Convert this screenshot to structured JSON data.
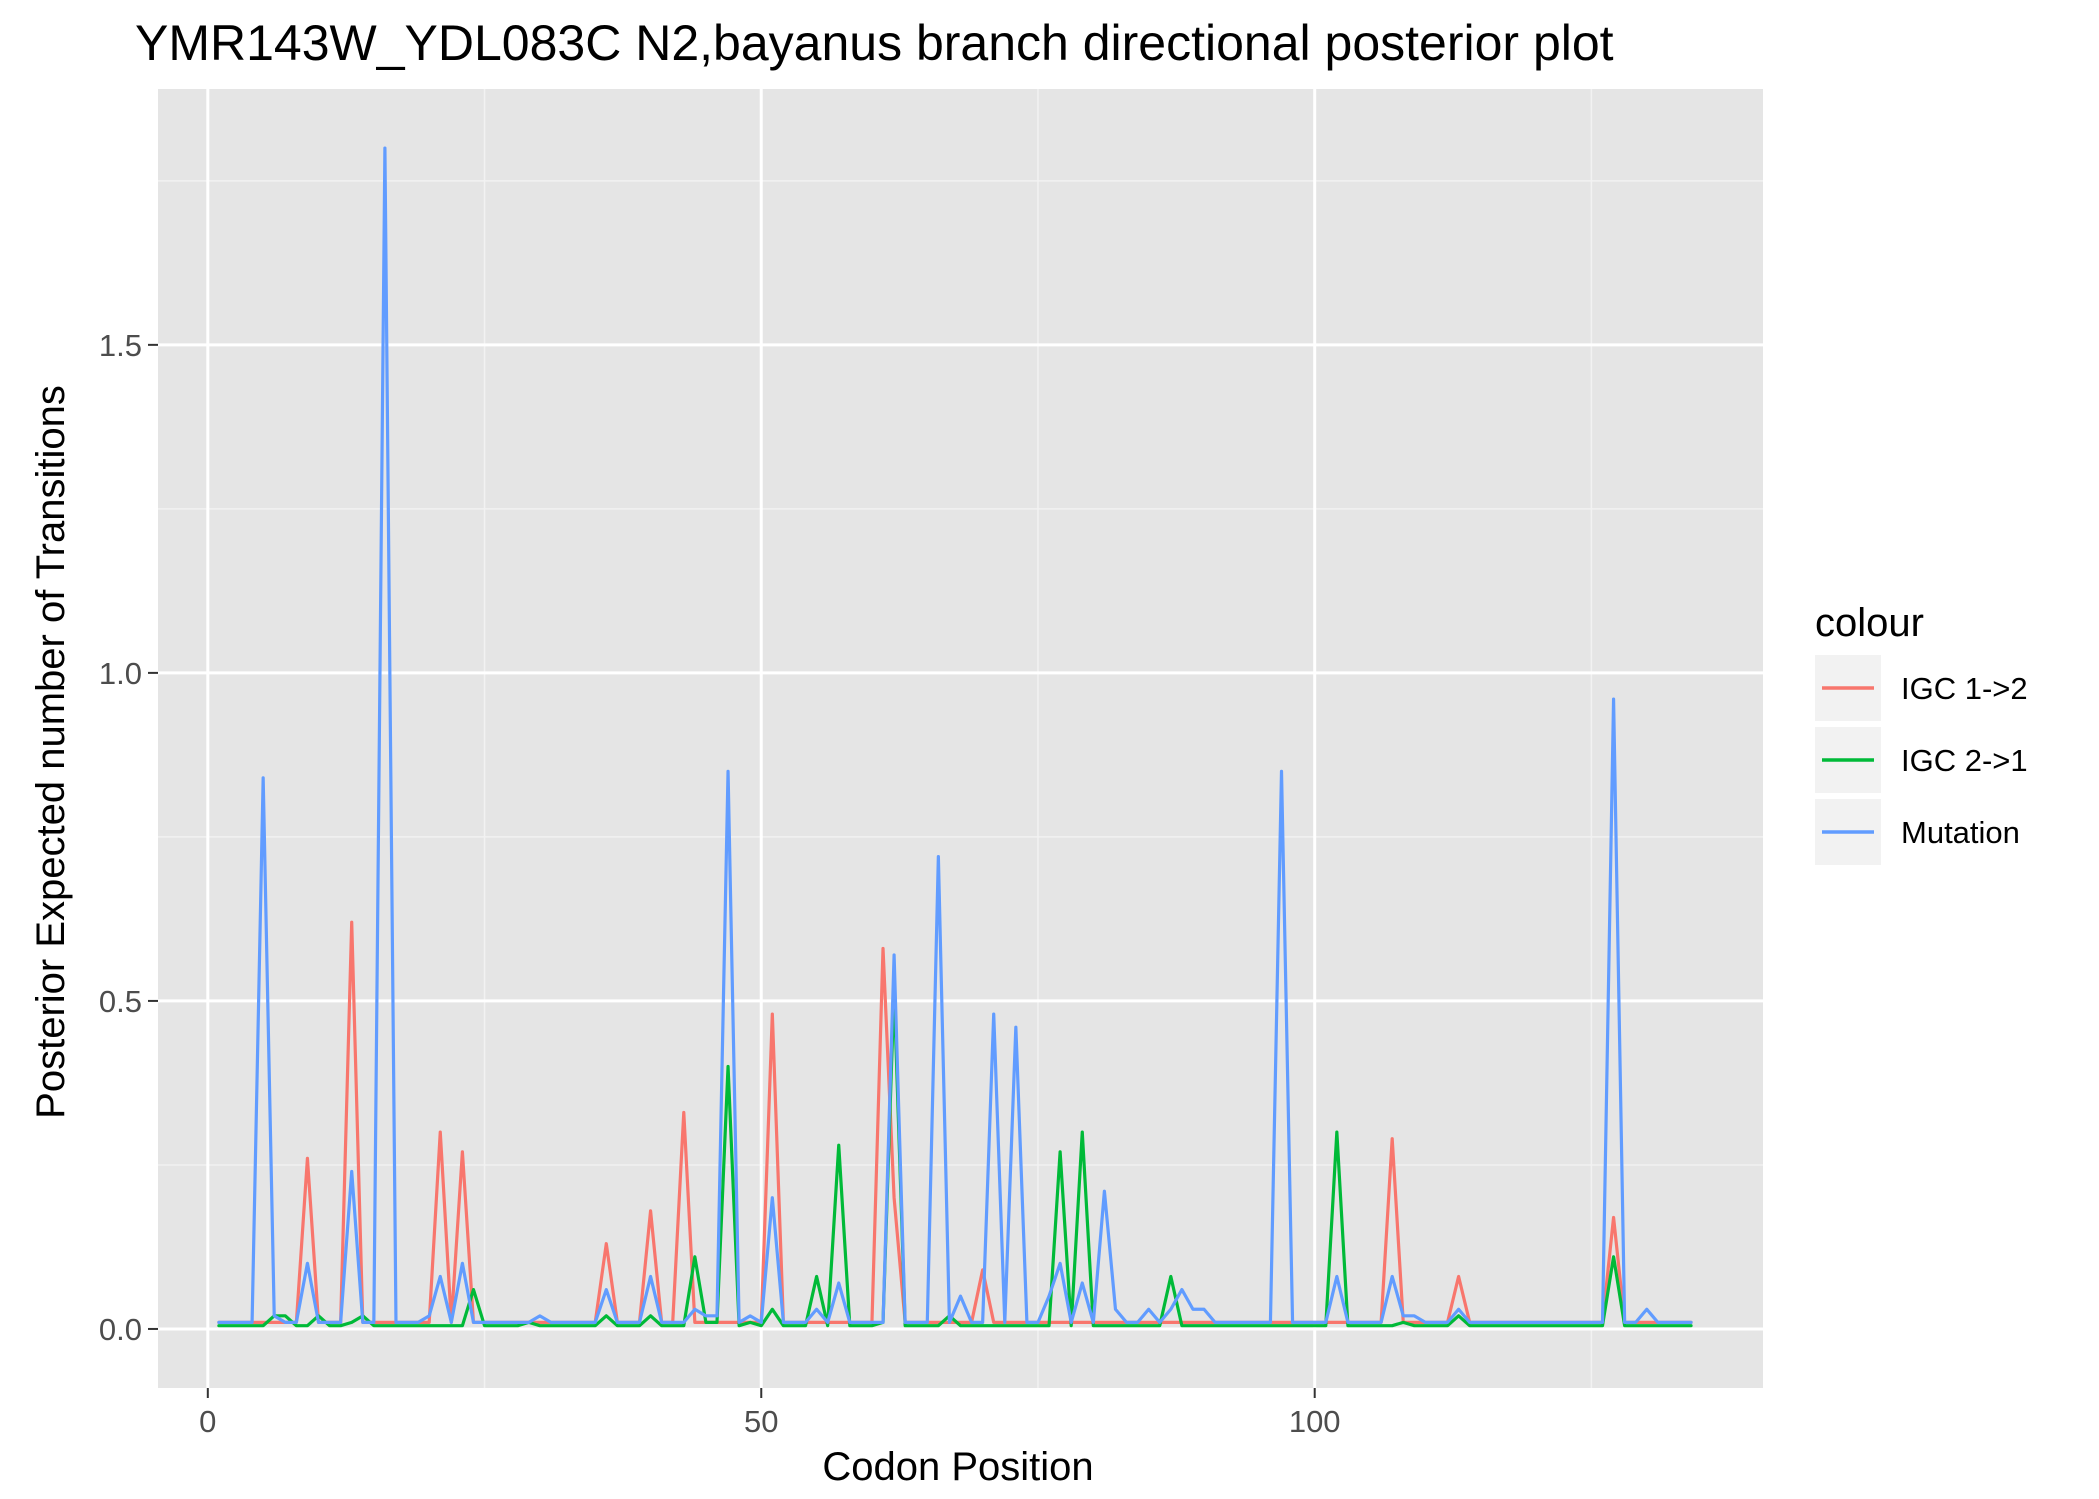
{
  "chart_data": {
    "type": "line",
    "title": "YMR143W_YDL083C N2,bayanus branch directional posterior plot",
    "xlabel": "Codon Position",
    "ylabel": "Posterior Expected number of Transitions",
    "xlim": [
      -4.5,
      140.5
    ],
    "ylim": [
      -0.09,
      1.89
    ],
    "x_ticks": [
      0,
      50,
      100
    ],
    "x_tick_labels": [
      "0",
      "50",
      "100"
    ],
    "y_ticks": [
      0.0,
      0.5,
      1.0,
      1.5
    ],
    "y_tick_labels": [
      "0.0",
      "0.5",
      "1.0",
      "1.5"
    ],
    "grid": true,
    "background": "#e5e5e5",
    "legend": {
      "title": "colour",
      "position": "right"
    },
    "x_start": 1,
    "series": [
      {
        "name": "IGC 1->2",
        "color": "#f8766d",
        "values": [
          0.01,
          0.01,
          0.01,
          0.01,
          0.01,
          0.01,
          0.01,
          0.01,
          0.26,
          0.01,
          0.01,
          0.01,
          0.62,
          0.01,
          0.01,
          0.01,
          0.01,
          0.01,
          0.01,
          0.01,
          0.3,
          0.01,
          0.27,
          0.01,
          0.01,
          0.01,
          0.01,
          0.01,
          0.01,
          0.01,
          0.01,
          0.01,
          0.01,
          0.01,
          0.01,
          0.13,
          0.01,
          0.01,
          0.01,
          0.18,
          0.01,
          0.01,
          0.33,
          0.01,
          0.01,
          0.01,
          0.01,
          0.01,
          0.01,
          0.01,
          0.48,
          0.01,
          0.01,
          0.01,
          0.01,
          0.01,
          0.01,
          0.01,
          0.01,
          0.01,
          0.58,
          0.2,
          0.01,
          0.01,
          0.01,
          0.01,
          0.01,
          0.01,
          0.01,
          0.09,
          0.01,
          0.01,
          0.01,
          0.01,
          0.01,
          0.01,
          0.01,
          0.01,
          0.01,
          0.01,
          0.01,
          0.01,
          0.01,
          0.01,
          0.01,
          0.01,
          0.01,
          0.01,
          0.01,
          0.01,
          0.01,
          0.01,
          0.01,
          0.01,
          0.01,
          0.01,
          0.01,
          0.01,
          0.01,
          0.01,
          0.01,
          0.01,
          0.01,
          0.01,
          0.01,
          0.01,
          0.29,
          0.01,
          0.01,
          0.01,
          0.01,
          0.01,
          0.08,
          0.01,
          0.01,
          0.01,
          0.01,
          0.01,
          0.01,
          0.01,
          0.01,
          0.01,
          0.01,
          0.01,
          0.01,
          0.01,
          0.17,
          0.01,
          0.01,
          0.01,
          0.01,
          0.01,
          0.01,
          0.01
        ]
      },
      {
        "name": "IGC 2->1",
        "color": "#00ba38",
        "values": [
          0.005,
          0.005,
          0.005,
          0.005,
          0.005,
          0.02,
          0.02,
          0.005,
          0.005,
          0.02,
          0.005,
          0.005,
          0.01,
          0.02,
          0.005,
          0.005,
          0.005,
          0.005,
          0.005,
          0.005,
          0.005,
          0.005,
          0.005,
          0.06,
          0.005,
          0.005,
          0.005,
          0.005,
          0.01,
          0.005,
          0.005,
          0.005,
          0.005,
          0.005,
          0.005,
          0.02,
          0.005,
          0.005,
          0.005,
          0.02,
          0.005,
          0.005,
          0.005,
          0.11,
          0.01,
          0.01,
          0.4,
          0.005,
          0.01,
          0.005,
          0.03,
          0.005,
          0.005,
          0.005,
          0.08,
          0.005,
          0.28,
          0.005,
          0.005,
          0.005,
          0.01,
          0.52,
          0.005,
          0.005,
          0.005,
          0.005,
          0.02,
          0.005,
          0.005,
          0.005,
          0.005,
          0.005,
          0.005,
          0.005,
          0.005,
          0.005,
          0.27,
          0.005,
          0.3,
          0.005,
          0.005,
          0.005,
          0.005,
          0.005,
          0.005,
          0.005,
          0.08,
          0.005,
          0.005,
          0.005,
          0.005,
          0.005,
          0.005,
          0.005,
          0.005,
          0.005,
          0.005,
          0.005,
          0.005,
          0.005,
          0.005,
          0.3,
          0.005,
          0.005,
          0.005,
          0.005,
          0.005,
          0.01,
          0.005,
          0.005,
          0.005,
          0.005,
          0.02,
          0.005,
          0.005,
          0.005,
          0.005,
          0.005,
          0.005,
          0.005,
          0.005,
          0.005,
          0.005,
          0.005,
          0.005,
          0.005,
          0.11,
          0.005,
          0.005,
          0.005,
          0.005,
          0.005,
          0.005,
          0.005
        ]
      },
      {
        "name": "Mutation",
        "color": "#619cff",
        "values": [
          0.01,
          0.01,
          0.01,
          0.01,
          0.84,
          0.02,
          0.01,
          0.01,
          0.1,
          0.01,
          0.01,
          0.01,
          0.24,
          0.01,
          0.01,
          1.8,
          0.01,
          0.01,
          0.01,
          0.02,
          0.08,
          0.01,
          0.1,
          0.01,
          0.01,
          0.01,
          0.01,
          0.01,
          0.01,
          0.02,
          0.01,
          0.01,
          0.01,
          0.01,
          0.01,
          0.06,
          0.01,
          0.01,
          0.01,
          0.08,
          0.01,
          0.01,
          0.01,
          0.03,
          0.02,
          0.02,
          0.85,
          0.01,
          0.02,
          0.01,
          0.2,
          0.01,
          0.01,
          0.01,
          0.03,
          0.01,
          0.07,
          0.01,
          0.01,
          0.01,
          0.01,
          0.57,
          0.01,
          0.01,
          0.01,
          0.72,
          0.01,
          0.05,
          0.01,
          0.01,
          0.48,
          0.01,
          0.46,
          0.01,
          0.01,
          0.05,
          0.1,
          0.01,
          0.07,
          0.01,
          0.21,
          0.03,
          0.01,
          0.01,
          0.03,
          0.01,
          0.03,
          0.06,
          0.03,
          0.03,
          0.01,
          0.01,
          0.01,
          0.01,
          0.01,
          0.01,
          0.85,
          0.01,
          0.01,
          0.01,
          0.01,
          0.08,
          0.01,
          0.01,
          0.01,
          0.01,
          0.08,
          0.02,
          0.02,
          0.01,
          0.01,
          0.01,
          0.03,
          0.01,
          0.01,
          0.01,
          0.01,
          0.01,
          0.01,
          0.01,
          0.01,
          0.01,
          0.01,
          0.01,
          0.01,
          0.01,
          0.96,
          0.01,
          0.01,
          0.03,
          0.01,
          0.01,
          0.01,
          0.01
        ]
      }
    ]
  }
}
